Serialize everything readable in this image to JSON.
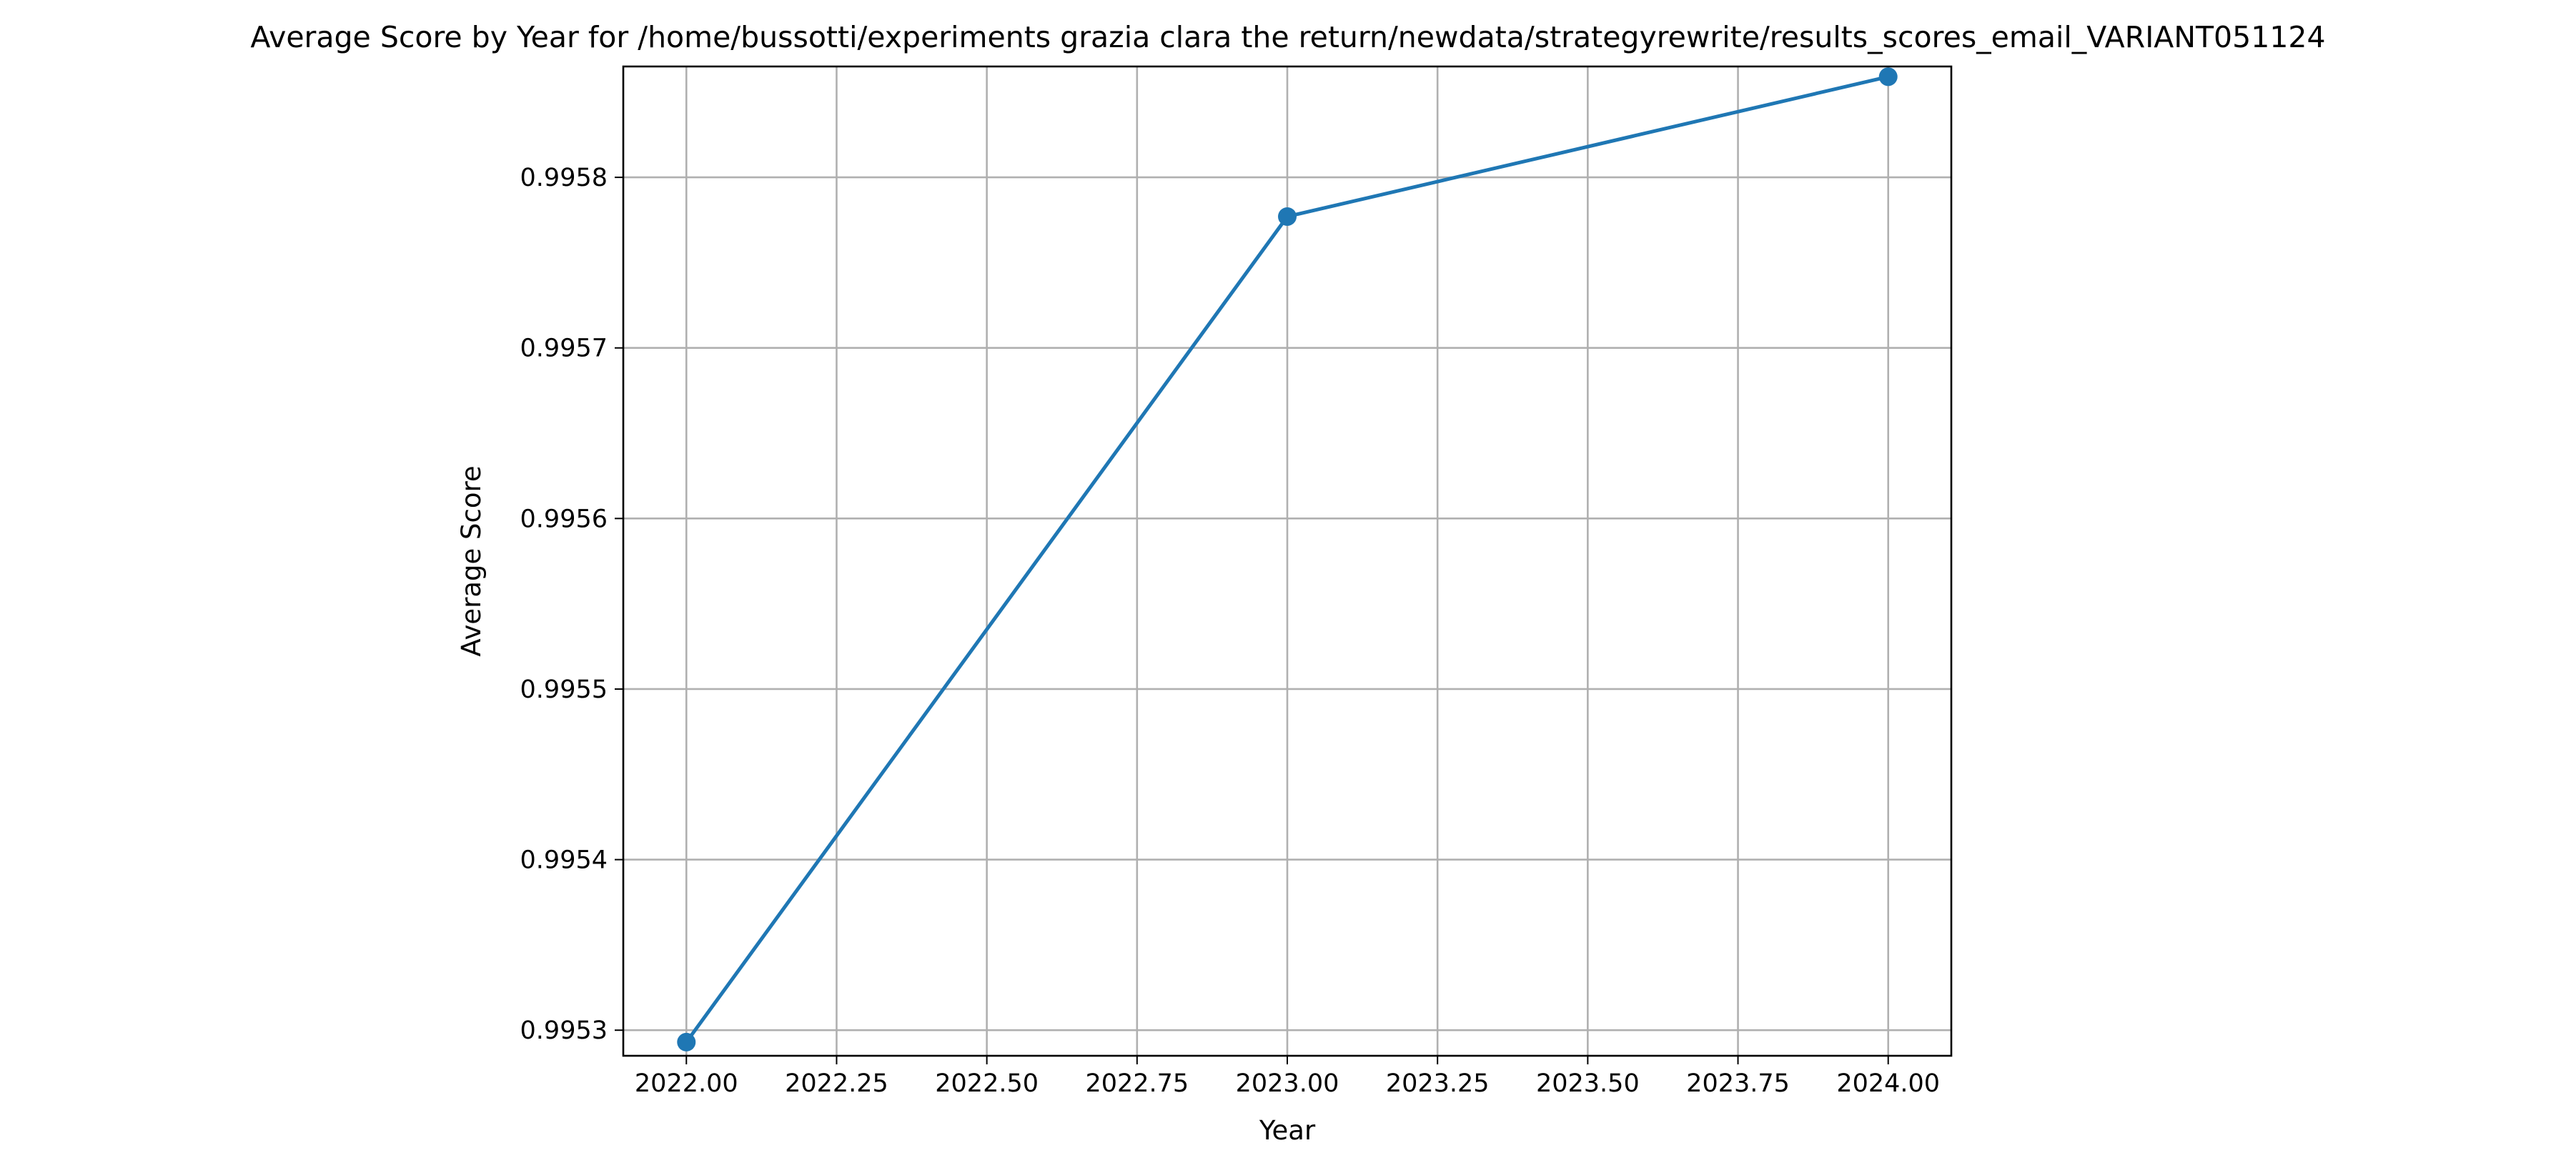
{
  "chart_data": {
    "type": "line",
    "title": "Average Score by Year for /home/bussotti/experiments grazia clara the return/newdata/strategyrewrite/results_scores_email_VARIANT051124",
    "xlabel": "Year",
    "ylabel": "Average Score",
    "xlim": [
      2021.895,
      2024.105
    ],
    "ylim": [
      0.995285,
      0.995865
    ],
    "x_ticks": [
      2022.0,
      2022.25,
      2022.5,
      2022.75,
      2023.0,
      2023.25,
      2023.5,
      2023.75,
      2024.0
    ],
    "x_tick_labels": [
      "2022.00",
      "2022.25",
      "2022.50",
      "2022.75",
      "2023.00",
      "2023.25",
      "2023.50",
      "2023.75",
      "2024.00"
    ],
    "y_ticks": [
      0.9953,
      0.9954,
      0.9955,
      0.9956,
      0.9957,
      0.9958
    ],
    "y_tick_labels": [
      "0.9953",
      "0.9954",
      "0.9955",
      "0.9956",
      "0.9957",
      "0.9958"
    ],
    "grid": true,
    "series": [
      {
        "x": [
          2022,
          2023,
          2024
        ],
        "values": [
          0.995293,
          0.995777,
          0.995859
        ],
        "color": "#1f77b4",
        "marker": "circle"
      }
    ]
  }
}
